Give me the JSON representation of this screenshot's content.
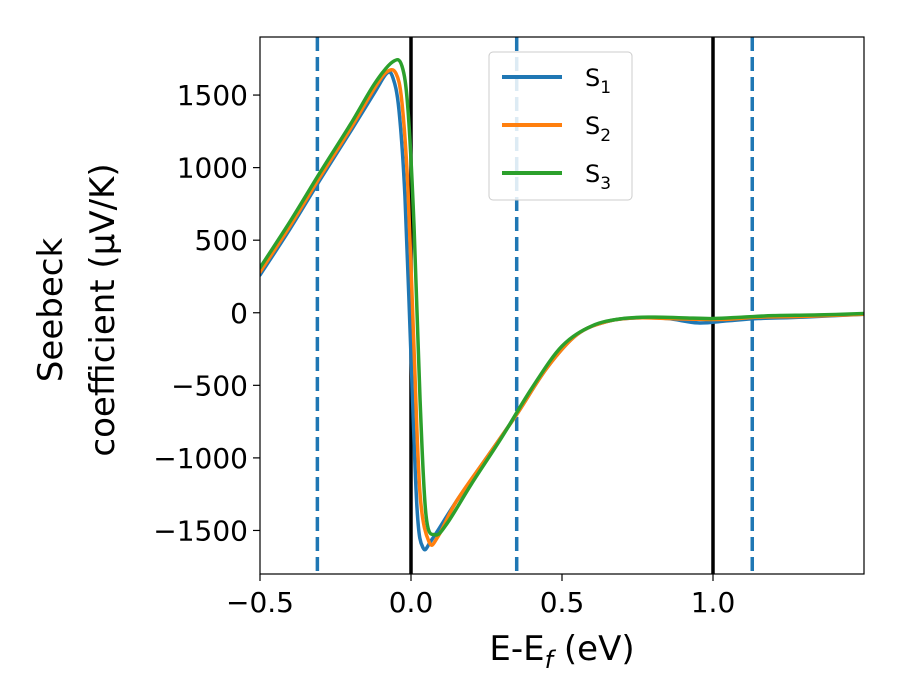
{
  "chart_data": {
    "type": "line",
    "xlabel": "E-E",
    "xlabel_sub": "f",
    "xlabel_unit": " (eV)",
    "ylabel_line1": "Seebeck",
    "ylabel_line2": "coefficient  (μV/K)",
    "xlim": [
      -0.5,
      1.5
    ],
    "ylim": [
      -1800,
      1900
    ],
    "xticks": [
      -0.5,
      0.0,
      0.5,
      1.0
    ],
    "xtick_labels": [
      "−0.5",
      "0.0",
      "0.5",
      "1.0"
    ],
    "yticks": [
      1500,
      1000,
      500,
      0,
      -500,
      -1000,
      -1500
    ],
    "ytick_labels": [
      "1500",
      "1000",
      "500",
      "0",
      "−500",
      "−1000",
      "−1500"
    ],
    "grid": false,
    "legend_position": "top-center",
    "vlines": [
      {
        "x": -0.31,
        "style": "dashed",
        "color": "#1f77b4"
      },
      {
        "x": 0.0,
        "style": "solid",
        "color": "#000000"
      },
      {
        "x": 0.35,
        "style": "dashed",
        "color": "#1f77b4"
      },
      {
        "x": 1.0,
        "style": "solid",
        "color": "#000000"
      },
      {
        "x": 1.13,
        "style": "dashed",
        "color": "#1f77b4"
      }
    ],
    "series": [
      {
        "name": "S",
        "sub": "1",
        "color": "#1f77b4",
        "x": [
          -0.5,
          -0.4,
          -0.3,
          -0.2,
          -0.12,
          -0.08,
          -0.06,
          -0.04,
          -0.02,
          0.0,
          0.02,
          0.04,
          0.07,
          0.15,
          0.25,
          0.35,
          0.45,
          0.55,
          0.65,
          0.75,
          0.85,
          0.95,
          1.05,
          1.15,
          1.3,
          1.5
        ],
        "y": [
          260,
          580,
          920,
          1250,
          1520,
          1650,
          1620,
          1400,
          800,
          -300,
          -1350,
          -1620,
          -1560,
          -1300,
          -1000,
          -700,
          -380,
          -150,
          -60,
          -35,
          -40,
          -70,
          -55,
          -40,
          -30,
          -10
        ]
      },
      {
        "name": "S",
        "sub": "2",
        "color": "#ff7f0e",
        "x": [
          -0.5,
          -0.4,
          -0.3,
          -0.2,
          -0.12,
          -0.08,
          -0.05,
          -0.03,
          -0.01,
          0.01,
          0.03,
          0.06,
          0.09,
          0.15,
          0.25,
          0.35,
          0.45,
          0.55,
          0.65,
          0.75,
          0.85,
          0.95,
          1.05,
          1.15,
          1.3,
          1.5
        ],
        "y": [
          280,
          600,
          940,
          1270,
          1550,
          1660,
          1650,
          1450,
          850,
          -250,
          -1250,
          -1580,
          -1540,
          -1300,
          -1000,
          -700,
          -380,
          -150,
          -60,
          -35,
          -40,
          -45,
          -45,
          -30,
          -25,
          -10
        ]
      },
      {
        "name": "S",
        "sub": "3",
        "color": "#2ca02c",
        "x": [
          -0.5,
          -0.4,
          -0.3,
          -0.2,
          -0.12,
          -0.06,
          -0.03,
          -0.01,
          0.01,
          0.03,
          0.05,
          0.08,
          0.12,
          0.2,
          0.3,
          0.4,
          0.5,
          0.6,
          0.7,
          0.8,
          0.9,
          1.0,
          1.1,
          1.2,
          1.35,
          1.5
        ],
        "y": [
          310,
          630,
          970,
          1300,
          1580,
          1730,
          1700,
          1400,
          600,
          -600,
          -1400,
          -1530,
          -1450,
          -1180,
          -860,
          -520,
          -230,
          -90,
          -40,
          -30,
          -35,
          -40,
          -30,
          -20,
          -15,
          -5
        ]
      }
    ]
  }
}
